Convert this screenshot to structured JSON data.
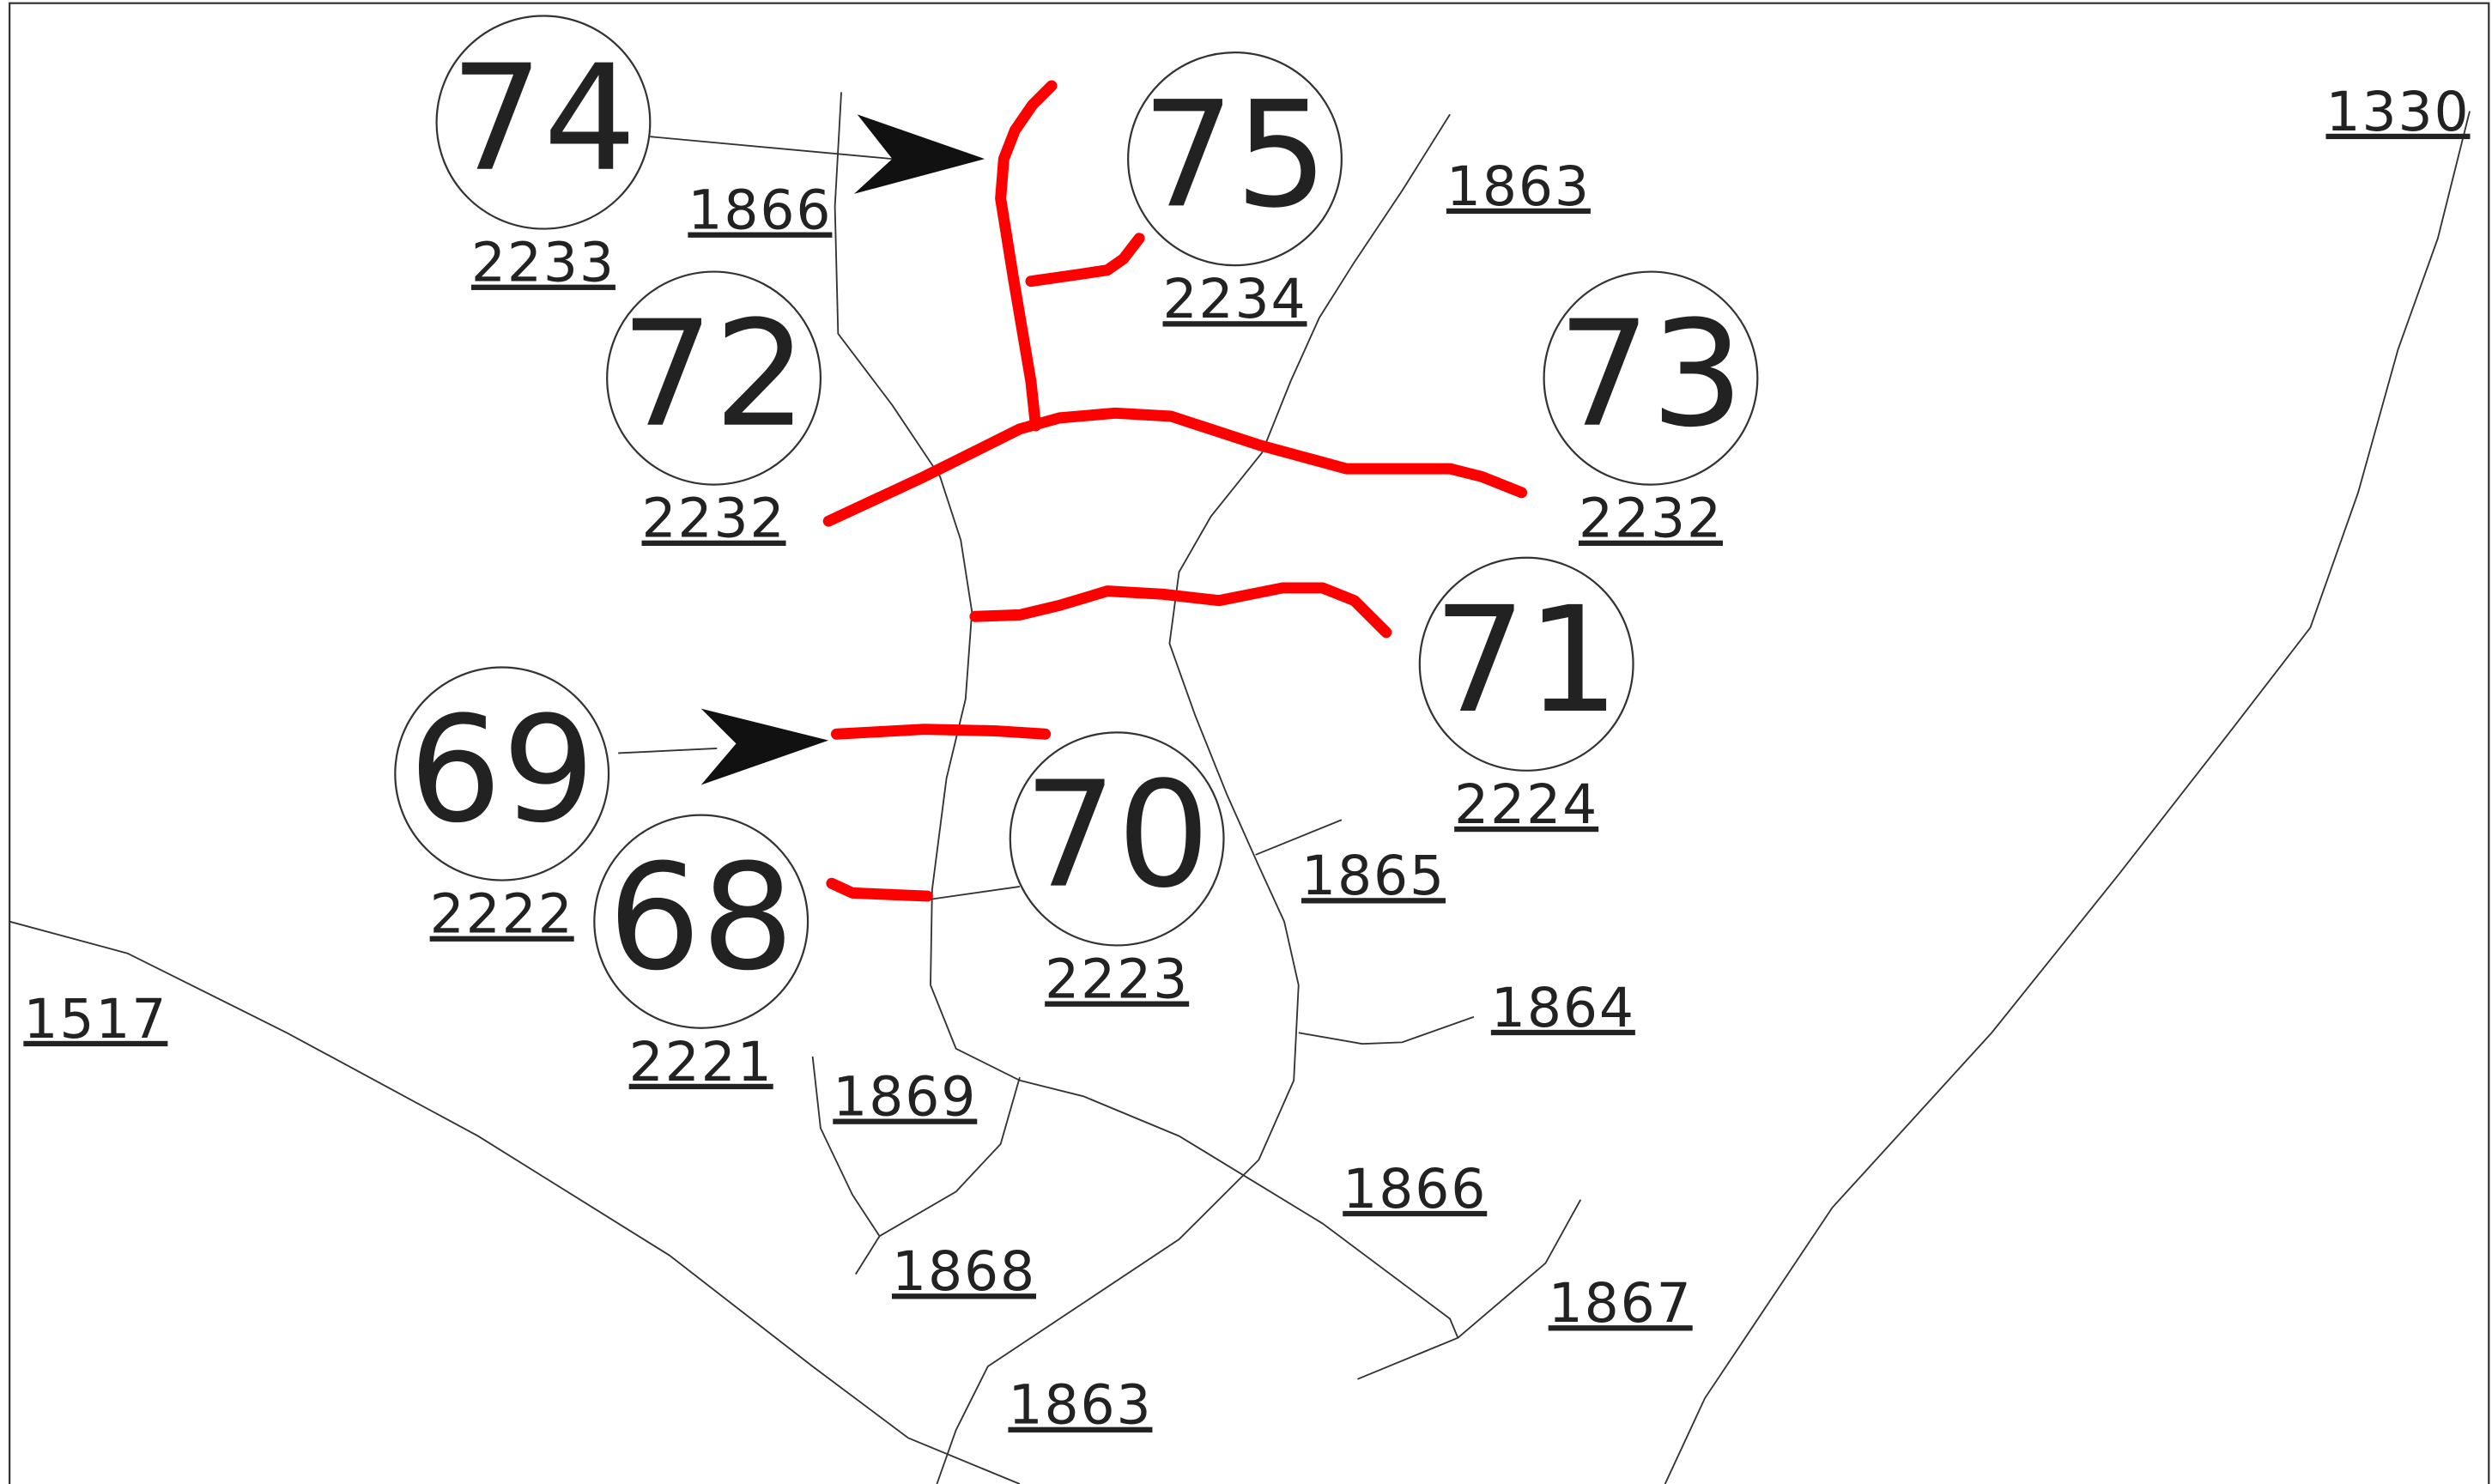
{
  "markers": [
    {
      "number": "74",
      "label": "2233"
    },
    {
      "number": "75",
      "label": "2234"
    },
    {
      "number": "72",
      "label": "2232"
    },
    {
      "number": "73",
      "label": "2232"
    },
    {
      "number": "71",
      "label": "2224"
    },
    {
      "number": "69",
      "label": "2222"
    },
    {
      "number": "70",
      "label": "2223"
    },
    {
      "number": "68",
      "label": "2221"
    }
  ],
  "parcels": [
    "1866",
    "1863",
    "1330",
    "1865",
    "1864",
    "1517",
    "1869",
    "1866",
    "1868",
    "1867",
    "1863"
  ]
}
